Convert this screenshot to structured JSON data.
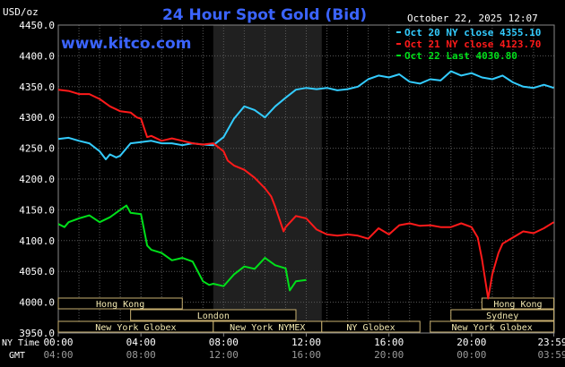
{
  "chart_data": {
    "type": "line",
    "title": "24 Hour Spot Gold (Bid)",
    "ylabel": "USD/oz",
    "brand": "www.kitco.com",
    "timestamp": "October 22, 2025 12:07",
    "ylim": [
      3950,
      4450
    ],
    "yticks": [
      "4450.0",
      "4400.0",
      "4350.0",
      "4300.0",
      "4250.0",
      "4200.0",
      "4150.0",
      "4100.0",
      "4050.0",
      "4000.0",
      "3950.0"
    ],
    "xlim": [
      0,
      24
    ],
    "xrow_labels": {
      "ny": "NY Time",
      "gmt": "GMT"
    },
    "xticks_ny": [
      "00:00",
      "04:00",
      "08:00",
      "12:00",
      "16:00",
      "20:00",
      "23:59"
    ],
    "xticks_gmt": [
      "04:00",
      "08:00",
      "12:00",
      "16:00",
      "20:00",
      "00:00",
      "03:59"
    ],
    "grid": true,
    "legend_position": "top-right",
    "highlight_band": [
      7.5,
      12.75
    ],
    "series": [
      {
        "name": "Oct 20 NY close 4355.10",
        "color": "#33ccff",
        "x": [
          0,
          0.5,
          1,
          1.5,
          2,
          2.3,
          2.5,
          2.8,
          3,
          3.5,
          4,
          4.5,
          5,
          5.5,
          6,
          6.5,
          7,
          7.5,
          8,
          8.5,
          9,
          9.5,
          10,
          10.5,
          11,
          11.5,
          12,
          12.5,
          13,
          13.5,
          14,
          14.5,
          15,
          15.5,
          16,
          16.5,
          17,
          17.5,
          18,
          18.5,
          19,
          19.5,
          20,
          20.5,
          21,
          21.5,
          22,
          22.5,
          23,
          23.5,
          23.98
        ],
        "values": [
          4265,
          4267,
          4262,
          4258,
          4245,
          4232,
          4240,
          4235,
          4238,
          4258,
          4260,
          4262,
          4258,
          4258,
          4255,
          4258,
          4256,
          4255,
          4268,
          4298,
          4318,
          4312,
          4300,
          4318,
          4332,
          4345,
          4348,
          4346,
          4348,
          4344,
          4346,
          4350,
          4362,
          4368,
          4365,
          4370,
          4358,
          4355,
          4362,
          4360,
          4375,
          4368,
          4372,
          4365,
          4362,
          4368,
          4357,
          4350,
          4348,
          4353,
          4348
        ]
      },
      {
        "name": "Oct 21 NY close 4123.70",
        "color": "#ff1a1a",
        "x": [
          0,
          0.5,
          1,
          1.5,
          2,
          2.5,
          3,
          3.5,
          3.8,
          4,
          4.3,
          4.5,
          5,
          5.5,
          6,
          6.5,
          7,
          7.5,
          8,
          8.2,
          8.5,
          9,
          9.5,
          10,
          10.3,
          10.5,
          10.9,
          11,
          11.5,
          12,
          12.5,
          13,
          13.5,
          14,
          14.5,
          15,
          15.5,
          16,
          16.5,
          17,
          17.5,
          18,
          18.5,
          19,
          19.5,
          20,
          20.3,
          20.5,
          20.8,
          21,
          21.3,
          21.5,
          22,
          22.5,
          23,
          23.5,
          23.98
        ],
        "values": [
          4345,
          4343,
          4338,
          4338,
          4330,
          4318,
          4310,
          4308,
          4300,
          4298,
          4268,
          4270,
          4262,
          4266,
          4262,
          4258,
          4256,
          4258,
          4245,
          4230,
          4222,
          4215,
          4202,
          4185,
          4172,
          4155,
          4115,
          4122,
          4140,
          4136,
          4118,
          4110,
          4108,
          4110,
          4108,
          4103,
          4120,
          4110,
          4125,
          4128,
          4124,
          4125,
          4122,
          4122,
          4128,
          4122,
          4105,
          4070,
          4006,
          4045,
          4080,
          4095,
          4105,
          4115,
          4112,
          4120,
          4130
        ]
      },
      {
        "name": "Oct 22 Last 4030.80",
        "color": "#00e01a",
        "x": [
          0,
          0.3,
          0.5,
          1,
          1.5,
          2,
          2.5,
          3,
          3.3,
          3.5,
          4,
          4.3,
          4.5,
          5,
          5.5,
          6,
          6.5,
          7,
          7.3,
          7.5,
          8,
          8.5,
          9,
          9.5,
          10,
          10.5,
          11,
          11.2,
          11.5,
          12
        ],
        "values": [
          4127,
          4122,
          4130,
          4136,
          4141,
          4130,
          4138,
          4150,
          4157,
          4145,
          4143,
          4092,
          4085,
          4080,
          4068,
          4072,
          4066,
          4034,
          4028,
          4030,
          4026,
          4045,
          4058,
          4054,
          4072,
          4060,
          4055,
          4019,
          4034,
          4036
        ]
      }
    ],
    "session_bands": [
      {
        "label": "Hong Kong",
        "start": 0,
        "end": 6.0,
        "row": 0
      },
      {
        "label": "London",
        "start": 3.5,
        "end": 11.5,
        "row": 1
      },
      {
        "label": "New York Globex",
        "start": 0,
        "end": 7.5,
        "row": 2
      },
      {
        "label": "New York NYMEX",
        "start": 7.5,
        "end": 12.75,
        "row": 2
      },
      {
        "label": "NY Globex",
        "start": 12.75,
        "end": 17.5,
        "row": 2
      },
      {
        "label": "Hong Kong",
        "start": 20.5,
        "end": 23.98,
        "row": 0
      },
      {
        "label": "Sydney",
        "start": 19.0,
        "end": 23.98,
        "row": 1
      },
      {
        "label": "New York Globex",
        "start": 18.0,
        "end": 23.98,
        "row": 2
      }
    ]
  }
}
